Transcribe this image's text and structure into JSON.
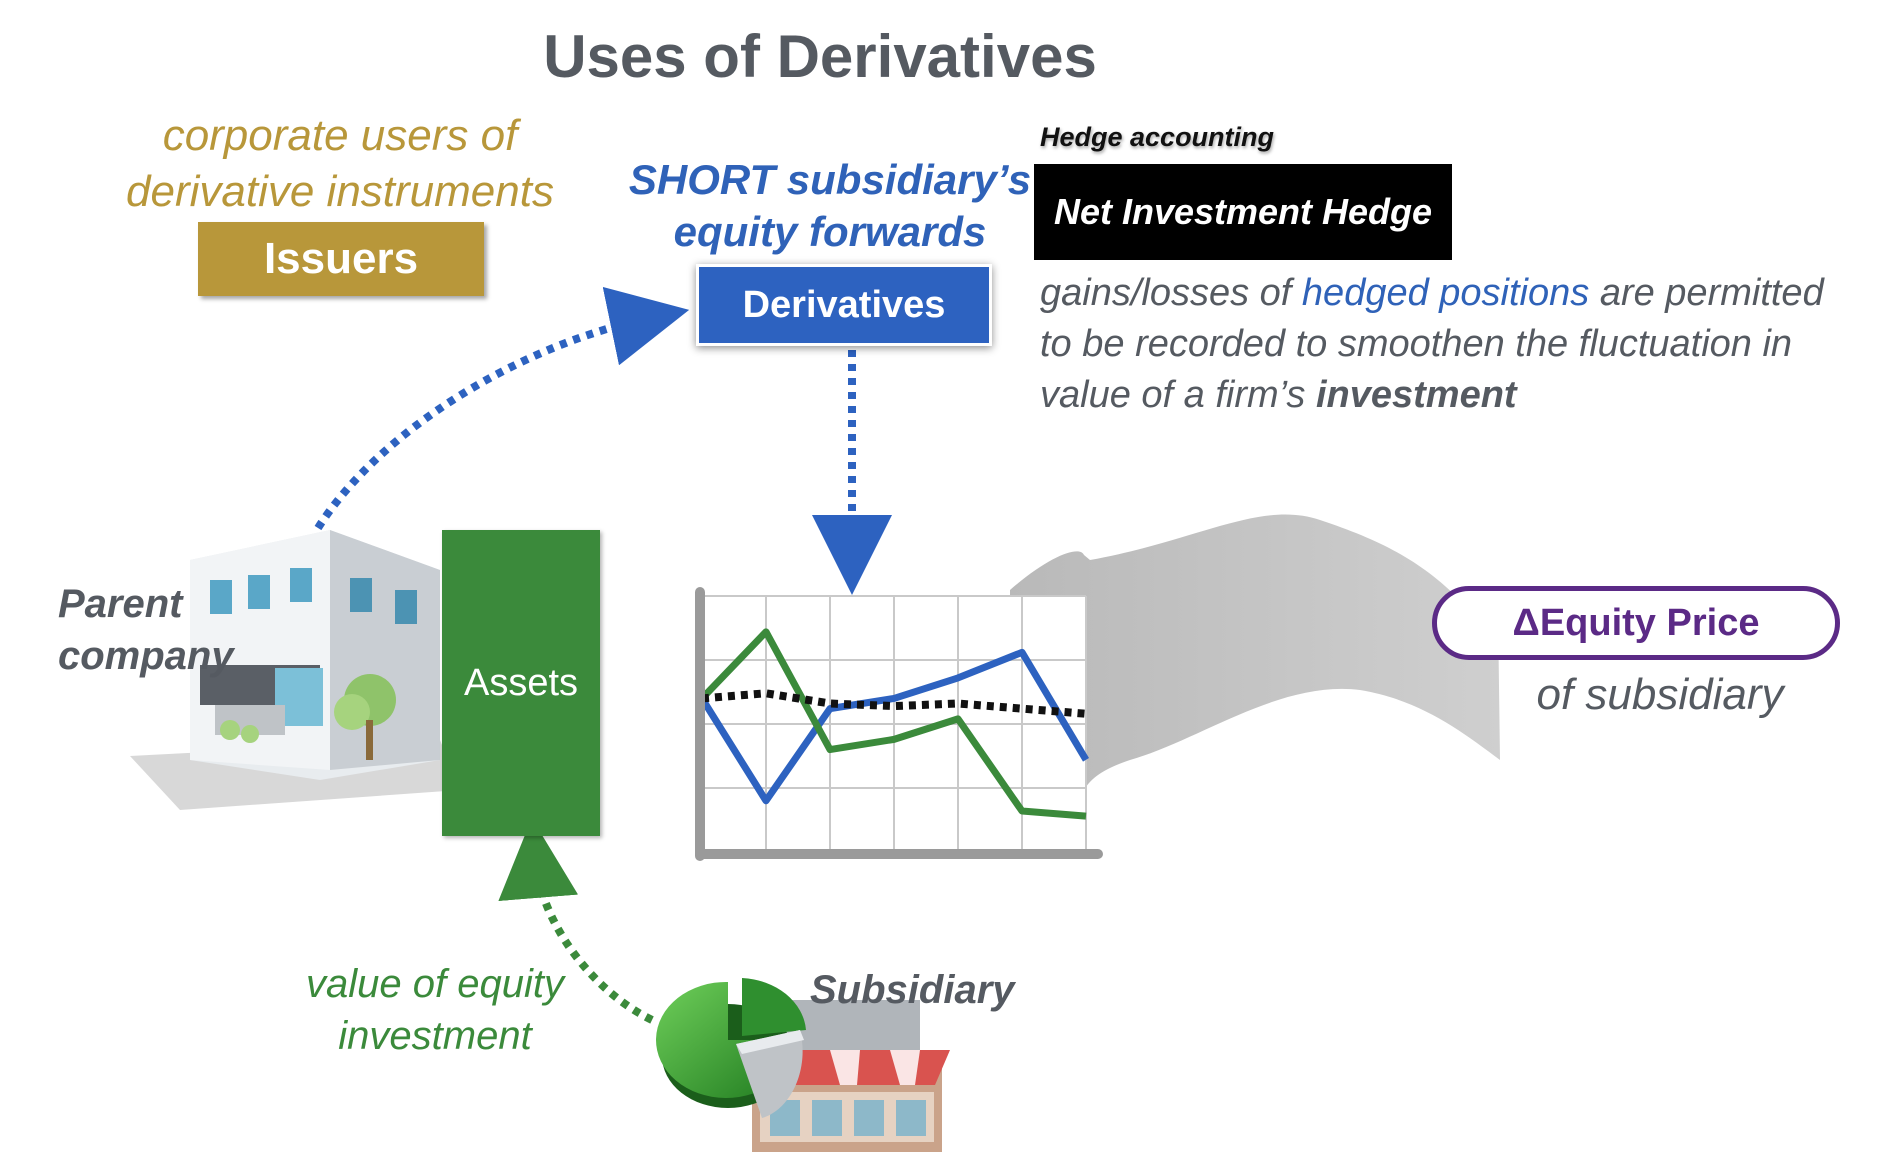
{
  "title": "Uses of Derivatives",
  "issuers": {
    "subtitle_line1": "corporate users of",
    "subtitle_line2": "derivative instruments",
    "label": "Issuers"
  },
  "derivatives": {
    "caption_line1": "SHORT subsidiary’s",
    "caption_line2": "equity forwards",
    "label": "Derivatives"
  },
  "hedge": {
    "heading": "Hedge accounting",
    "box_label": "Net Investment Hedge",
    "desc_pre": "gains/losses of ",
    "desc_highlight": "hedged positions",
    "desc_mid": " are permitted to be recorded to smoothen the fluctuation in value of a firm’s ",
    "desc_bold": "investment"
  },
  "parent": {
    "label_line1": "Parent",
    "label_line2": "company",
    "assets_label": "Assets"
  },
  "equity": {
    "pill_label": "ΔEquity Price",
    "sub_label": "of subsidiary"
  },
  "investment": {
    "label_line1": "value of equity",
    "label_line2": "investment"
  },
  "subsidiary": {
    "label": "Subsidiary"
  },
  "chart_data": {
    "type": "line",
    "title": "",
    "xlabel": "",
    "ylabel": "",
    "grid": true,
    "x": [
      0,
      1,
      2,
      3,
      4,
      5,
      6
    ],
    "series": [
      {
        "color": "#2d62c0",
        "style": "solid",
        "values": [
          3,
          1,
          2.8,
          3,
          3.4,
          3.9,
          1.8
        ]
      },
      {
        "color": "#3b8a3b",
        "style": "solid",
        "values": [
          3,
          4.3,
          2,
          2.2,
          2.6,
          0.8,
          0.7
        ]
      },
      {
        "color": "#111111",
        "style": "dotted",
        "values": [
          3,
          3.1,
          2.9,
          2.85,
          2.9,
          2.8,
          2.7
        ]
      }
    ],
    "ylim": [
      0,
      5
    ]
  },
  "colors": {
    "blue": "#2d62c0",
    "green": "#3b8a3b",
    "gold": "#b8973a",
    "purple": "#5b2a86",
    "gray_text": "#555a61"
  }
}
